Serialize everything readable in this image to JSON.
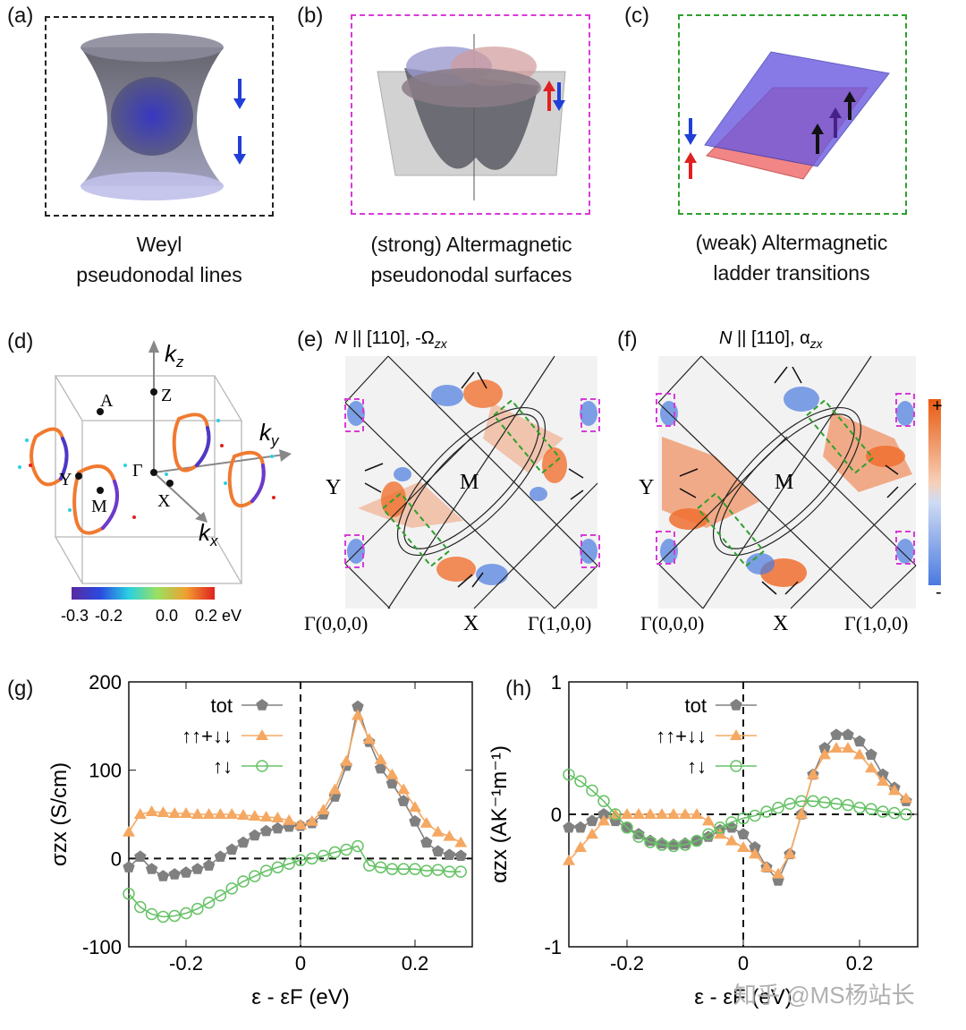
{
  "panels": {
    "a": {
      "label": "(a)",
      "caption1": "Weyl",
      "caption2": "pseudonodal lines"
    },
    "b": {
      "label": "(b)",
      "caption1": "(strong) Altermagnetic",
      "caption2": "pseudonodal surfaces"
    },
    "c": {
      "label": "(c)",
      "caption1": "(weak) Altermagnetic",
      "caption2": "ladder transitions"
    },
    "d": {
      "label": "(d)",
      "kz": "k",
      "kz_sub": "z",
      "ky": "k",
      "ky_sub": "y",
      "kx": "k",
      "kx_sub": "x",
      "points": [
        "A",
        "Z",
        "Γ",
        "Y",
        "M",
        "X"
      ],
      "colorbar": {
        "ticks": [
          "-0.3",
          "-0.2",
          "0.0",
          "0.2 eV"
        ]
      }
    },
    "e": {
      "label": "(e)",
      "title_n": "N",
      "title_rest": " || [110], -Ω",
      "title_sub": "zx",
      "y": "Y",
      "m": "M",
      "x": "X",
      "g0": "Γ(0,0,0)",
      "g1": "Γ(1,0,0)"
    },
    "f": {
      "label": "(f)",
      "title_n": "N",
      "title_rest": " || [110], α",
      "title_sub": "zx",
      "y": "Y",
      "m": "M",
      "x": "X",
      "g0": "Γ(0,0,0)",
      "g1": "Γ(1,0,0)",
      "scale_plus": "+",
      "scale_minus": "-"
    },
    "g": {
      "label": "(g)"
    },
    "h": {
      "label": "(h)"
    }
  },
  "chart_data": [
    {
      "type": "line",
      "panel": "g",
      "title": "",
      "xlabel": "ε - εF (eV)",
      "ylabel": "σzx (S/cm)",
      "xlim": [
        -0.3,
        0.3
      ],
      "ylim": [
        -100,
        200
      ],
      "xticks": [
        "-0.2",
        "0",
        "0.2"
      ],
      "yticks": [
        "-100",
        "0",
        "100",
        "200"
      ],
      "legend": [
        "tot",
        "↑↑+↓↓",
        "↑↓"
      ],
      "x": [
        -0.3,
        -0.28,
        -0.26,
        -0.24,
        -0.22,
        -0.2,
        -0.18,
        -0.16,
        -0.14,
        -0.12,
        -0.1,
        -0.08,
        -0.06,
        -0.04,
        -0.02,
        0,
        0.02,
        0.04,
        0.06,
        0.08,
        0.1,
        0.12,
        0.14,
        0.16,
        0.18,
        0.2,
        0.22,
        0.24,
        0.26,
        0.28
      ],
      "series": [
        {
          "name": "tot",
          "color": "#808080",
          "marker": "pentagon",
          "values": [
            -10,
            2,
            -12,
            -20,
            -18,
            -16,
            -12,
            -8,
            2,
            10,
            18,
            26,
            31,
            34,
            36,
            37,
            40,
            50,
            70,
            105,
            172,
            132,
            102,
            85,
            65,
            42,
            18,
            8,
            4,
            3
          ]
        },
        {
          "name": "↑↑+↓↓",
          "color": "#f5a862",
          "marker": "triangle",
          "values": [
            30,
            50,
            53,
            52,
            51,
            51,
            50,
            50,
            50,
            50,
            49,
            48,
            47,
            46,
            43,
            38,
            42,
            55,
            78,
            110,
            162,
            135,
            112,
            95,
            78,
            58,
            40,
            30,
            25,
            18
          ]
        },
        {
          "name": "↑↓",
          "color": "#66c266",
          "marker": "circle",
          "values": [
            -40,
            -55,
            -63,
            -66,
            -65,
            -62,
            -57,
            -50,
            -42,
            -34,
            -26,
            -20,
            -14,
            -10,
            -6,
            -2,
            0,
            3,
            7,
            10,
            14,
            -8,
            -10,
            -12,
            -12,
            -12,
            -14,
            -13,
            -15,
            -15
          ]
        }
      ]
    },
    {
      "type": "line",
      "panel": "h",
      "title": "",
      "xlabel": "ε - εF (eV)",
      "ylabel": "αzx (AK⁻¹m⁻¹)",
      "xlim": [
        -0.3,
        0.3
      ],
      "ylim": [
        -1,
        1
      ],
      "xticks": [
        "-0.2",
        "0",
        "0.2"
      ],
      "yticks": [
        "-1",
        "0",
        "1"
      ],
      "legend": [
        "tot",
        "↑↑+↓↓",
        "↑↓"
      ],
      "x": [
        -0.3,
        -0.28,
        -0.26,
        -0.24,
        -0.22,
        -0.2,
        -0.18,
        -0.16,
        -0.14,
        -0.12,
        -0.1,
        -0.08,
        -0.06,
        -0.04,
        -0.02,
        0,
        0.02,
        0.04,
        0.06,
        0.08,
        0.1,
        0.12,
        0.14,
        0.16,
        0.18,
        0.2,
        0.22,
        0.24,
        0.26,
        0.28
      ],
      "series": [
        {
          "name": "tot",
          "color": "#808080",
          "marker": "pentagon",
          "values": [
            -0.1,
            -0.1,
            -0.05,
            0,
            -0.05,
            -0.1,
            -0.15,
            -0.2,
            -0.22,
            -0.23,
            -0.22,
            -0.2,
            -0.17,
            -0.12,
            -0.1,
            -0.15,
            -0.25,
            -0.4,
            -0.5,
            -0.3,
            0.0,
            0.3,
            0.5,
            0.6,
            0.6,
            0.55,
            0.45,
            0.3,
            0.2,
            0.1
          ]
        },
        {
          "name": "↑↑+↓↓",
          "color": "#f5a862",
          "marker": "triangle",
          "values": [
            -0.35,
            -0.25,
            -0.15,
            -0.05,
            0.0,
            0.0,
            0.0,
            0.0,
            0.0,
            0.0,
            0.0,
            0.0,
            -0.05,
            -0.15,
            -0.2,
            -0.25,
            -0.3,
            -0.4,
            -0.45,
            -0.3,
            0.0,
            0.3,
            0.45,
            0.5,
            0.5,
            0.45,
            0.35,
            0.25,
            0.18,
            0.12
          ]
        },
        {
          "name": "↑↓",
          "color": "#66c266",
          "marker": "circle",
          "values": [
            0.3,
            0.25,
            0.18,
            0.1,
            0.0,
            -0.1,
            -0.17,
            -0.21,
            -0.23,
            -0.24,
            -0.23,
            -0.2,
            -0.15,
            -0.1,
            -0.06,
            -0.03,
            -0.01,
            0.02,
            0.05,
            0.08,
            0.1,
            0.1,
            0.09,
            0.08,
            0.07,
            0.05,
            0.04,
            0.02,
            0.01,
            0.0
          ]
        }
      ]
    }
  ],
  "watermark": "知乎 @MS杨站长"
}
